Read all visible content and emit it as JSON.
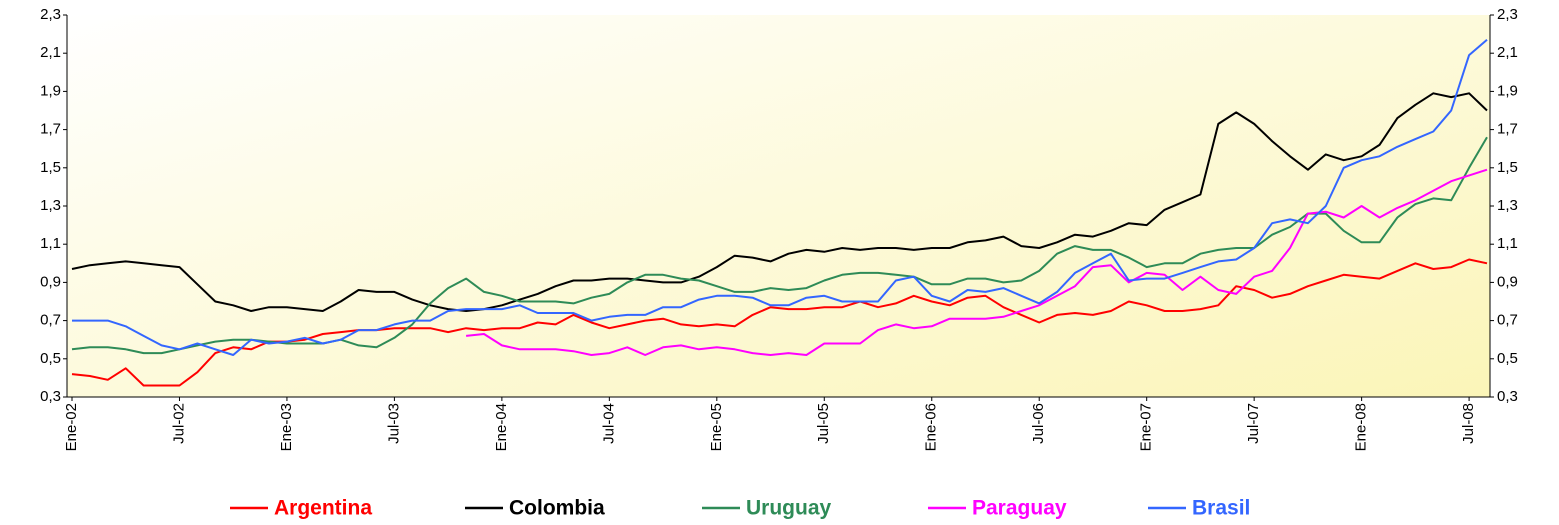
{
  "chart_data": {
    "type": "line",
    "categories": [
      "Ene-02",
      null,
      null,
      null,
      null,
      null,
      "Jul-02",
      null,
      null,
      null,
      null,
      null,
      "Ene-03",
      null,
      null,
      null,
      null,
      null,
      "Jul-03",
      null,
      null,
      null,
      null,
      null,
      "Ene-04",
      null,
      null,
      null,
      null,
      null,
      "Jul-04",
      null,
      null,
      null,
      null,
      null,
      "Ene-05",
      null,
      null,
      null,
      null,
      null,
      "Jul-05",
      null,
      null,
      null,
      null,
      null,
      "Ene-06",
      null,
      null,
      null,
      null,
      null,
      "Jul-06",
      null,
      null,
      null,
      null,
      null,
      "Ene-07",
      null,
      null,
      null,
      null,
      null,
      "Jul-07",
      null,
      null,
      null,
      null,
      null,
      "Ene-08",
      null,
      null,
      null,
      null,
      null,
      "Jul-08",
      null
    ],
    "series": [
      {
        "name": "Argentina",
        "color": "#ff0000",
        "values": [
          0.42,
          0.41,
          0.39,
          0.45,
          0.36,
          0.36,
          0.36,
          0.43,
          0.53,
          0.56,
          0.55,
          0.59,
          0.59,
          0.6,
          0.63,
          0.64,
          0.65,
          0.65,
          0.66,
          0.66,
          0.66,
          0.64,
          0.66,
          0.65,
          0.66,
          0.66,
          0.69,
          0.68,
          0.73,
          0.69,
          0.66,
          0.68,
          0.7,
          0.71,
          0.68,
          0.67,
          0.68,
          0.67,
          0.73,
          0.77,
          0.76,
          0.76,
          0.77,
          0.77,
          0.8,
          0.77,
          0.79,
          0.83,
          0.8,
          0.78,
          0.82,
          0.83,
          0.77,
          0.73,
          0.69,
          0.73,
          0.74,
          0.73,
          0.75,
          0.8,
          0.78,
          0.75,
          0.75,
          0.76,
          0.78,
          0.88,
          0.86,
          0.82,
          0.84,
          0.88,
          0.91,
          0.94,
          0.93,
          0.92,
          0.96,
          1.0,
          0.97,
          0.98,
          1.02,
          1.0
        ]
      },
      {
        "name": "Colombia",
        "color": "#000000",
        "values": [
          0.97,
          0.99,
          1.0,
          1.01,
          1.0,
          0.99,
          0.98,
          0.89,
          0.8,
          0.78,
          0.75,
          0.77,
          0.77,
          0.76,
          0.75,
          0.8,
          0.86,
          0.85,
          0.85,
          0.81,
          0.78,
          0.76,
          0.75,
          0.76,
          0.78,
          0.81,
          0.84,
          0.88,
          0.91,
          0.91,
          0.92,
          0.92,
          0.91,
          0.9,
          0.9,
          0.93,
          0.98,
          1.04,
          1.03,
          1.01,
          1.05,
          1.07,
          1.06,
          1.08,
          1.07,
          1.08,
          1.08,
          1.07,
          1.08,
          1.08,
          1.11,
          1.12,
          1.14,
          1.09,
          1.08,
          1.11,
          1.15,
          1.14,
          1.17,
          1.21,
          1.2,
          1.28,
          1.32,
          1.36,
          1.73,
          1.79,
          1.73,
          1.64,
          1.56,
          1.49,
          1.57,
          1.54,
          1.56,
          1.62,
          1.76,
          1.83,
          1.89,
          1.87,
          1.89,
          1.8
        ]
      },
      {
        "name": "Uruguay",
        "color": "#2e8b57",
        "values": [
          0.55,
          0.56,
          0.56,
          0.55,
          0.53,
          0.53,
          0.55,
          0.57,
          0.59,
          0.6,
          0.6,
          0.59,
          0.58,
          0.58,
          0.58,
          0.6,
          0.57,
          0.56,
          0.61,
          0.68,
          0.79,
          0.87,
          0.92,
          0.85,
          0.83,
          0.8,
          0.8,
          0.8,
          0.79,
          0.82,
          0.84,
          0.9,
          0.94,
          0.94,
          0.92,
          0.91,
          0.88,
          0.85,
          0.85,
          0.87,
          0.86,
          0.87,
          0.91,
          0.94,
          0.95,
          0.95,
          0.94,
          0.93,
          0.89,
          0.89,
          0.92,
          0.92,
          0.9,
          0.91,
          0.96,
          1.05,
          1.09,
          1.07,
          1.07,
          1.03,
          0.98,
          1.0,
          1.0,
          1.05,
          1.07,
          1.08,
          1.08,
          1.15,
          1.19,
          1.26,
          1.26,
          1.17,
          1.11,
          1.11,
          1.24,
          1.31,
          1.34,
          1.33,
          1.5,
          1.66
        ]
      },
      {
        "name": "Paraguay",
        "color": "#ff00ff",
        "values": [
          null,
          null,
          null,
          null,
          null,
          null,
          null,
          null,
          null,
          null,
          null,
          null,
          null,
          null,
          null,
          null,
          null,
          null,
          null,
          null,
          null,
          null,
          0.62,
          0.63,
          0.57,
          0.55,
          0.55,
          0.55,
          0.54,
          0.52,
          0.53,
          0.56,
          0.52,
          0.56,
          0.57,
          0.55,
          0.56,
          0.55,
          0.53,
          0.52,
          0.53,
          0.52,
          0.58,
          0.58,
          0.58,
          0.65,
          0.68,
          0.66,
          0.67,
          0.71,
          0.71,
          0.71,
          0.72,
          0.75,
          0.78,
          0.83,
          0.88,
          0.98,
          0.99,
          0.9,
          0.95,
          0.94,
          0.86,
          0.93,
          0.86,
          0.84,
          0.93,
          0.96,
          1.08,
          1.26,
          1.27,
          1.24,
          1.3,
          1.24,
          1.29,
          1.33,
          1.38,
          1.43,
          1.46,
          1.49
        ]
      },
      {
        "name": "Brasil",
        "color": "#3366ff",
        "values": [
          0.7,
          0.7,
          0.7,
          0.67,
          0.62,
          0.57,
          0.55,
          0.58,
          0.55,
          0.52,
          0.6,
          0.58,
          0.59,
          0.61,
          0.58,
          0.6,
          0.65,
          0.65,
          0.68,
          0.7,
          0.7,
          0.75,
          0.76,
          0.76,
          0.76,
          0.78,
          0.74,
          0.74,
          0.74,
          0.7,
          0.72,
          0.73,
          0.73,
          0.77,
          0.77,
          0.81,
          0.83,
          0.83,
          0.82,
          0.78,
          0.78,
          0.82,
          0.83,
          0.8,
          0.8,
          0.8,
          0.91,
          0.93,
          0.83,
          0.8,
          0.86,
          0.85,
          0.87,
          0.83,
          0.79,
          0.85,
          0.95,
          1.0,
          1.05,
          0.91,
          0.92,
          0.92,
          0.95,
          0.98,
          1.01,
          1.02,
          1.08,
          1.21,
          1.23,
          1.21,
          1.3,
          1.5,
          1.54,
          1.56,
          1.61,
          1.65,
          1.69,
          1.8,
          2.09,
          2.17
        ]
      }
    ],
    "ylim": [
      0.3,
      2.3
    ],
    "yticks": [
      {
        "value": 0.3,
        "label": "0,3"
      },
      {
        "value": 0.5,
        "label": "0,5"
      },
      {
        "value": 0.7,
        "label": "0,7"
      },
      {
        "value": 0.9,
        "label": "0,9"
      },
      {
        "value": 1.1,
        "label": "1,1"
      },
      {
        "value": 1.3,
        "label": "1,3"
      },
      {
        "value": 1.5,
        "label": "1,5"
      },
      {
        "value": 1.7,
        "label": "1,7"
      },
      {
        "value": 1.9,
        "label": "1,9"
      },
      {
        "value": 2.1,
        "label": "2,1"
      },
      {
        "value": 2.3,
        "label": "2,3"
      }
    ],
    "y2lim": [
      0.3,
      2.3
    ],
    "y2ticks": [
      {
        "value": 0.3,
        "label": "0,3"
      },
      {
        "value": 0.5,
        "label": "0,5"
      },
      {
        "value": 0.7,
        "label": "0,7"
      },
      {
        "value": 0.9,
        "label": "0,9"
      },
      {
        "value": 1.1,
        "label": "1,1"
      },
      {
        "value": 1.3,
        "label": "1,3"
      },
      {
        "value": 1.5,
        "label": "1,5"
      },
      {
        "value": 1.7,
        "label": "1,7"
      },
      {
        "value": 1.9,
        "label": "1,9"
      },
      {
        "value": 2.1,
        "label": "2,1"
      },
      {
        "value": 2.3,
        "label": "2,3"
      }
    ],
    "grid": false,
    "legend": "bottom"
  }
}
